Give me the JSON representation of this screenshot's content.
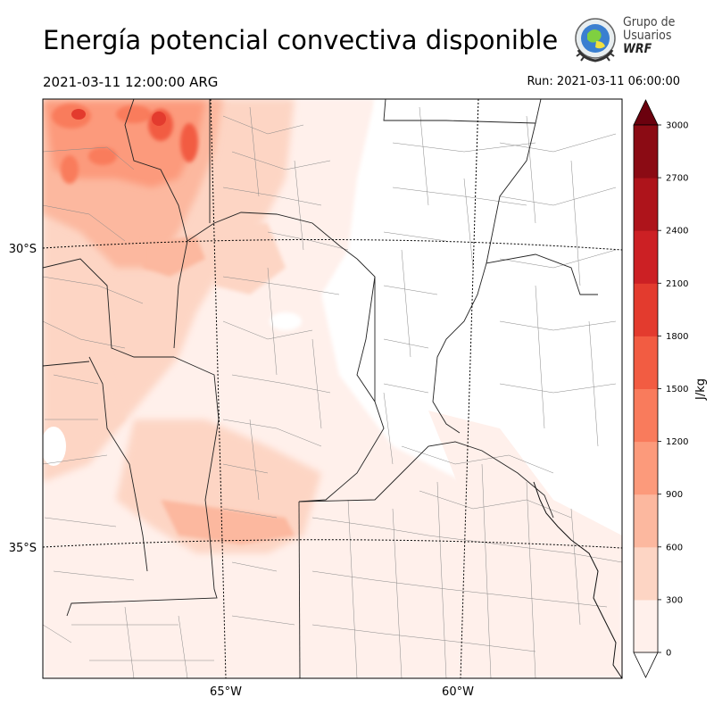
{
  "header": {
    "title": "Energía potencial convectiva disponible",
    "valid_time": "2021-03-11 12:00:00 ARG",
    "run_time": "Run: 2021-03-11 06:00:00"
  },
  "logo": {
    "line1": "Grupo de",
    "line2": "Usuarios",
    "line3": "WRF"
  },
  "map": {
    "lat_labels": [
      "30°S",
      "35°S"
    ],
    "lon_labels": [
      "65°W",
      "60°W"
    ]
  },
  "colorbar": {
    "unit": "J/kg",
    "levels": [
      0,
      300,
      600,
      900,
      1200,
      1500,
      1800,
      2100,
      2400,
      2700,
      3000
    ],
    "tick_labels": [
      "0",
      "300",
      "600",
      "900",
      "1200",
      "1500",
      "1800",
      "2100",
      "2400",
      "2700",
      "3000"
    ],
    "colors": [
      "#fff0eb",
      "#fdd5c4",
      "#fcb89f",
      "#fc9a7b",
      "#f97b5c",
      "#f25c42",
      "#e33b2e",
      "#cc2024",
      "#ae141b",
      "#8b0b14",
      "#6b010e"
    ]
  }
}
